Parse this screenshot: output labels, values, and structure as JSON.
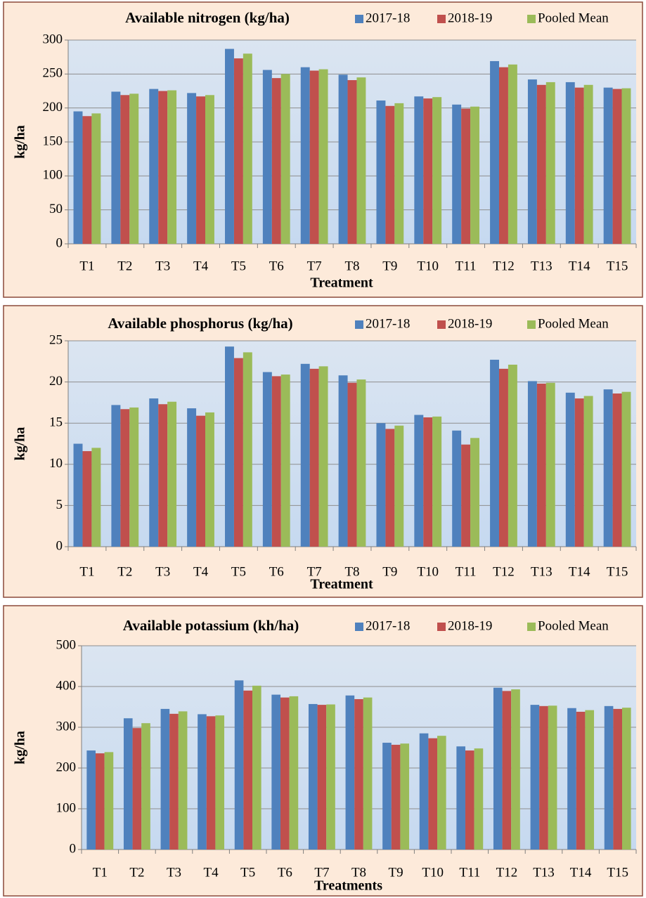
{
  "chart_data": [
    {
      "type": "bar",
      "title": "Available nitrogen (kg/ha)",
      "xlabel": "Treatment",
      "ylabel": "kg/ha",
      "categories": [
        "T1",
        "T2",
        "T3",
        "T4",
        "T5",
        "T6",
        "T7",
        "T8",
        "T9",
        "T10",
        "T11",
        "T12",
        "T13",
        "T14",
        "T15"
      ],
      "series": [
        {
          "name": "2017-18",
          "color": "#4f81bd",
          "values": [
            195,
            224,
            228,
            222,
            287,
            256,
            260,
            249,
            211,
            217,
            205,
            269,
            242,
            238,
            230
          ]
        },
        {
          "name": "2018-19",
          "color": "#c0504d",
          "values": [
            188,
            219,
            225,
            217,
            273,
            244,
            255,
            241,
            203,
            214,
            199,
            260,
            234,
            230,
            228
          ]
        },
        {
          "name": "Pooled Mean",
          "color": "#9bbb59",
          "values": [
            192,
            221,
            226,
            219,
            280,
            250,
            257,
            245,
            207,
            216,
            202,
            264,
            238,
            234,
            229
          ]
        }
      ],
      "ylim": [
        0,
        300
      ],
      "yticks": [
        0,
        50,
        100,
        150,
        200,
        250,
        300
      ],
      "grid": true,
      "legend": "top-right"
    },
    {
      "type": "bar",
      "title": "Available phosphorus (kg/ha)",
      "xlabel": "Treatment",
      "ylabel": "kg/ha",
      "categories": [
        "T1",
        "T2",
        "T3",
        "T4",
        "T5",
        "T6",
        "T7",
        "T8",
        "T9",
        "T10",
        "T11",
        "T12",
        "T13",
        "T14",
        "T15"
      ],
      "series": [
        {
          "name": "2017-18",
          "color": "#4f81bd",
          "values": [
            12.5,
            17.2,
            18.0,
            16.8,
            24.3,
            21.2,
            22.2,
            20.8,
            15.0,
            16.0,
            14.1,
            22.7,
            20.1,
            18.7,
            19.1
          ]
        },
        {
          "name": "2018-19",
          "color": "#c0504d",
          "values": [
            11.6,
            16.7,
            17.3,
            15.9,
            22.9,
            20.7,
            21.6,
            19.9,
            14.3,
            15.7,
            12.4,
            21.6,
            19.8,
            18.0,
            18.6
          ]
        },
        {
          "name": "Pooled Mean",
          "color": "#9bbb59",
          "values": [
            12.0,
            16.9,
            17.6,
            16.3,
            23.6,
            20.9,
            21.9,
            20.3,
            14.7,
            15.8,
            13.2,
            22.1,
            19.9,
            18.3,
            18.8
          ]
        }
      ],
      "ylim": [
        0,
        25
      ],
      "yticks": [
        0,
        5,
        10,
        15,
        20,
        25
      ],
      "grid": true,
      "legend": "top-right"
    },
    {
      "type": "bar",
      "title": "Available potassium (kh/ha)",
      "xlabel": "Treatments",
      "ylabel": "kg/ha",
      "categories": [
        "T1",
        "T2",
        "T3",
        "T4",
        "T5",
        "T6",
        "T7",
        "T8",
        "T9",
        "T10",
        "T11",
        "T12",
        "T13",
        "T14",
        "T15"
      ],
      "series": [
        {
          "name": "2017-18",
          "color": "#4f81bd",
          "values": [
            243,
            322,
            345,
            332,
            415,
            380,
            357,
            378,
            262,
            285,
            253,
            397,
            355,
            347,
            352
          ]
        },
        {
          "name": "2018-19",
          "color": "#c0504d",
          "values": [
            236,
            298,
            333,
            327,
            390,
            373,
            355,
            369,
            257,
            273,
            243,
            389,
            352,
            338,
            345
          ]
        },
        {
          "name": "Pooled Mean",
          "color": "#9bbb59",
          "values": [
            239,
            310,
            339,
            329,
            402,
            376,
            356,
            373,
            260,
            279,
            248,
            393,
            353,
            342,
            348
          ]
        }
      ],
      "ylim": [
        0,
        500
      ],
      "yticks": [
        0,
        100,
        200,
        300,
        400,
        500
      ],
      "grid": true,
      "legend": "top-right"
    }
  ]
}
